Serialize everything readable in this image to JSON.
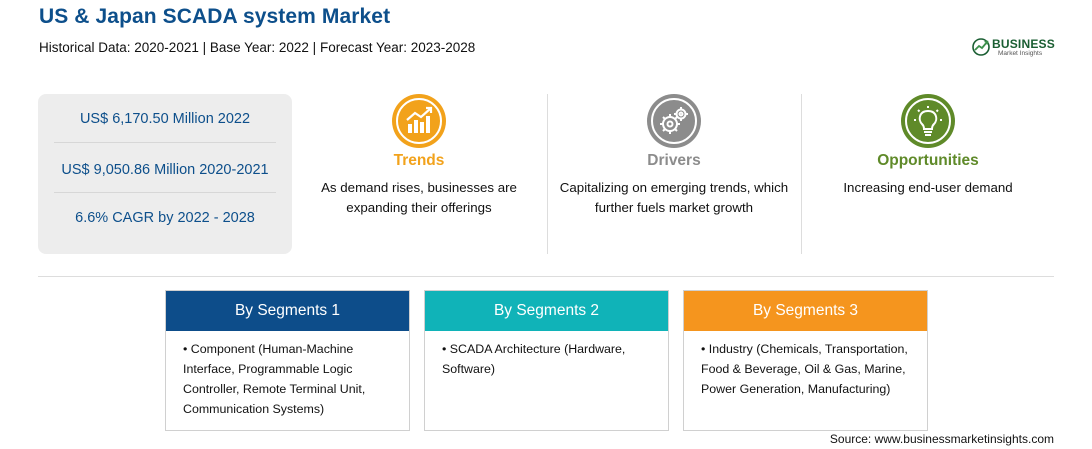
{
  "header": {
    "title": "US & Japan SCADA system Market",
    "subtitle": "Historical Data: 2020-2021 | Base Year: 2022 | Forecast Year: 2023-2028"
  },
  "logo": {
    "word": "BUSINESS",
    "sub": "Market Insights"
  },
  "stats": [
    "US$ 6,170.50 Million 2022",
    "US$ 9,050.86 Million 2020-2021",
    "6.6% CAGR by 2022 - 2028"
  ],
  "features": {
    "trends": {
      "title": "Trends",
      "text": "As demand rises, businesses are expanding their offerings",
      "icon": "trend-chart-icon",
      "color": "#f2a21b"
    },
    "drivers": {
      "title": "Drivers",
      "text": "Capitalizing on emerging trends, which further fuels market growth",
      "icon": "gears-icon",
      "color": "#8c8c8c"
    },
    "opportunities": {
      "title": "Opportunities",
      "text": "Increasing end-user demand",
      "icon": "lightbulb-icon",
      "color": "#5f8a29"
    }
  },
  "segments": [
    {
      "title": "By Segments 1",
      "body": "• Component (Human-Machine Interface, Programmable Logic Controller, Remote Terminal Unit, Communication Systems)",
      "color": "#0d4d8a"
    },
    {
      "title": "By Segments 2",
      "body": "• SCADA Architecture (Hardware, Software)",
      "color": "#10b3b8"
    },
    {
      "title": "By Segments 3",
      "body": "• Industry (Chemicals, Transportation, Food & Beverage, Oil & Gas, Marine, Power Generation, Manufacturing)",
      "color": "#f5951e"
    }
  ],
  "source": "Source: www.businessmarketinsights.com"
}
